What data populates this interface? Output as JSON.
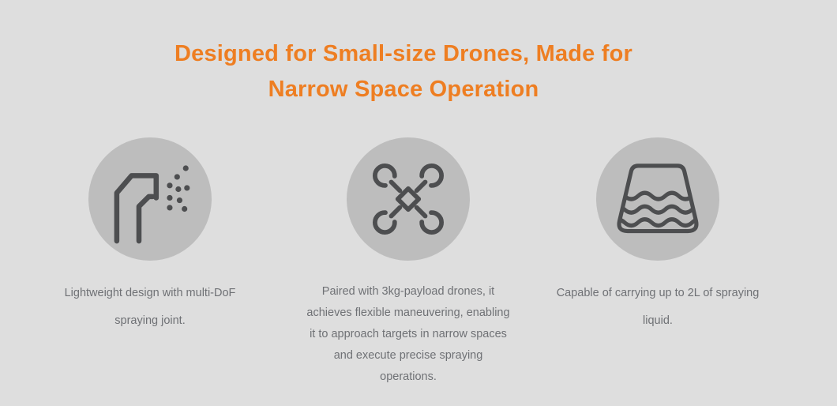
{
  "colors": {
    "background": "#dedede",
    "circle": "#bdbdbd",
    "icon_stroke": "#4d4e50",
    "heading": "#ee7e22",
    "caption": "#6f7175"
  },
  "heading": {
    "text": "Designed for Small-size Drones, Made for Narrow Space Operation",
    "lines": [
      "Designed for Small-size Drones, Made for",
      "Narrow Space Operation"
    ]
  },
  "features": [
    {
      "icon": "spray-joint-icon",
      "caption": "Lightweight design with multi-DoF spraying joint.",
      "caption_lines": [
        "Lightweight design with multi-DoF",
        "spraying joint."
      ]
    },
    {
      "icon": "drone-icon",
      "caption": "Paired with 3kg-payload drones, it achieves flexible maneuvering, enabling it to approach targets in narrow spaces and execute precise spraying operations.",
      "caption_lines": [
        "Paired with 3kg-payload drones, it",
        "achieves flexible maneuvering, enabling",
        "it to approach targets in narrow spaces",
        "and execute precise spraying",
        "operations."
      ]
    },
    {
      "icon": "liquid-tank-icon",
      "caption": "Capable of carrying up to 2L of spraying liquid.",
      "caption_lines": [
        "Capable of carrying up to 2L of spraying",
        "liquid."
      ]
    }
  ]
}
